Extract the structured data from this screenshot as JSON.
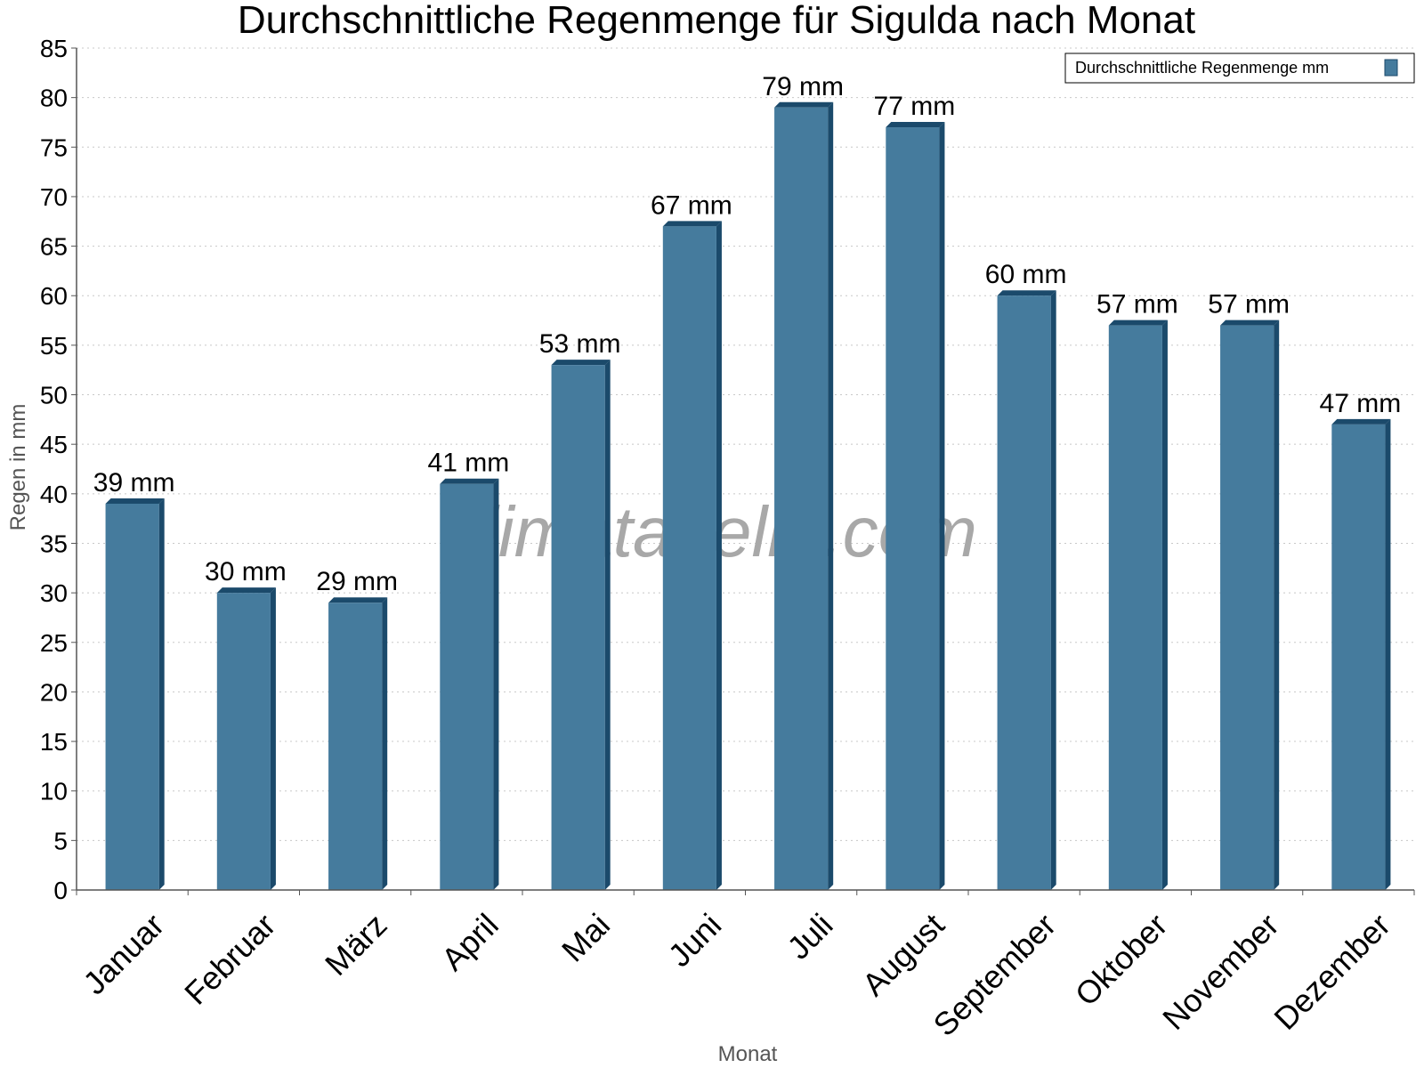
{
  "chart_data": {
    "type": "bar",
    "title": "Durchschnittliche Regenmenge für Sigulda nach Monat",
    "xlabel": "Monat",
    "ylabel": "Regen in mm",
    "categories": [
      "Januar",
      "Februar",
      "März",
      "April",
      "Mai",
      "Juni",
      "Juli",
      "August",
      "September",
      "Oktober",
      "November",
      "Dezember"
    ],
    "series": [
      {
        "name": "Durchschnittliche Regenmenge mm",
        "values": [
          39,
          30,
          29,
          41,
          53,
          67,
          79,
          77,
          60,
          57,
          57,
          47
        ],
        "labels": [
          "39 mm",
          "30 mm",
          "29 mm",
          "41 mm",
          "53 mm",
          "67 mm",
          "79 mm",
          "77 mm",
          "60 mm",
          "57 mm",
          "57 mm",
          "47 mm"
        ],
        "color": "#457b9d"
      }
    ],
    "ylim": [
      0,
      85
    ],
    "ytick_step": 5,
    "grid": true,
    "legend_position": "top-right",
    "watermark": "klimatabelle.com"
  }
}
